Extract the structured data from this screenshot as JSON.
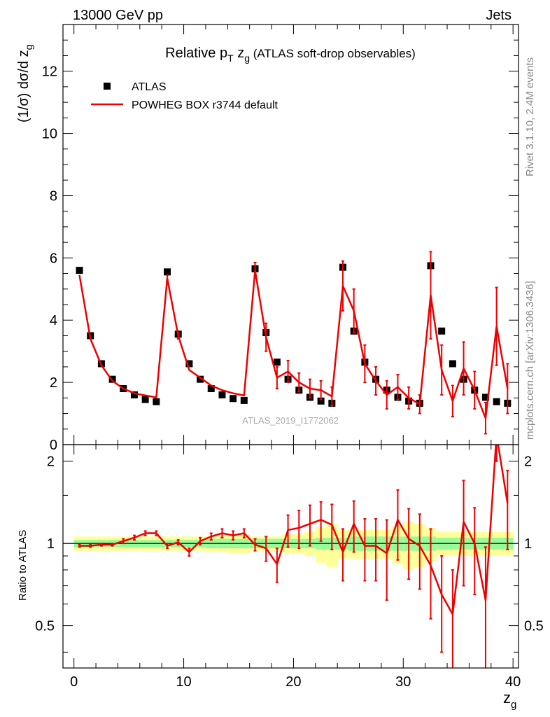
{
  "header": {
    "energy_label": "13000 GeV pp",
    "category_label": "Jets",
    "analysis_id": "ATLAS_2019_I1772062",
    "rivet_label": "Rivet 3.1.10,  2.4M events",
    "site_label": "mcplots.cern.ch [arXiv:1306.3436]"
  },
  "chart_data": {
    "type": "scatter",
    "title_parts": {
      "a": "Relative p",
      "sub_a": "T",
      "b": " z",
      "sub_b": "g",
      "c": " (ATLAS soft-drop observables)"
    },
    "xlabel": "z",
    "xlabel_sub": "g",
    "ylabel": "(1/σ) dσ/d z",
    "ylabel_sub": "g",
    "ratio_ylabel": "Ratio to ATLAS",
    "xlim": [
      -1,
      40.5
    ],
    "ylim": [
      0,
      13.5
    ],
    "ratio_ylim": [
      0.35,
      2.3
    ],
    "x_ticks": [
      0,
      10,
      20,
      30,
      40
    ],
    "x_tick_labels": [
      "0",
      "10",
      "20",
      "30",
      "40"
    ],
    "y_ticks": [
      0,
      2,
      4,
      6,
      8,
      10,
      12
    ],
    "y_tick_labels": [
      "0",
      "2",
      "4",
      "6",
      "8",
      "10",
      "12"
    ],
    "ratio_ticks": [
      0.5,
      1,
      2
    ],
    "ratio_tick_labels": [
      "0.5",
      "1",
      "2"
    ],
    "x": [
      0.5,
      1.5,
      2.5,
      3.5,
      4.5,
      5.5,
      6.5,
      7.5,
      8.5,
      9.5,
      10.5,
      11.5,
      12.5,
      13.5,
      14.5,
      15.5,
      16.5,
      17.5,
      18.5,
      19.5,
      20.5,
      21.5,
      22.5,
      23.5,
      24.5,
      25.5,
      26.5,
      27.5,
      28.5,
      29.5,
      30.5,
      31.5,
      32.5,
      33.5,
      34.5,
      35.5,
      36.5,
      37.5,
      38.5,
      39.5
    ],
    "series": [
      {
        "name": "ATLAS",
        "values": [
          5.6,
          3.5,
          2.6,
          2.1,
          1.8,
          1.6,
          1.45,
          1.38,
          5.55,
          3.55,
          2.6,
          2.1,
          1.8,
          1.6,
          1.48,
          1.42,
          5.65,
          3.6,
          2.65,
          2.1,
          1.75,
          1.52,
          1.4,
          1.33,
          5.7,
          3.65,
          2.65,
          2.1,
          1.75,
          1.52,
          1.4,
          1.33,
          5.75,
          3.65,
          2.6,
          2.1,
          1.75,
          1.52,
          1.38,
          1.33
        ]
      },
      {
        "name": "POWHEG BOX r3744 default",
        "values": [
          5.45,
          3.4,
          2.55,
          2.05,
          1.8,
          1.65,
          1.58,
          1.52,
          5.35,
          3.5,
          2.4,
          2.15,
          1.9,
          1.75,
          1.65,
          1.58,
          5.6,
          3.45,
          2.15,
          2.35,
          2.0,
          1.8,
          1.75,
          1.55,
          5.1,
          4.3,
          2.6,
          2.05,
          1.6,
          1.85,
          1.5,
          1.3,
          4.8,
          2.4,
          1.4,
          2.45,
          1.75,
          0.85,
          3.8,
          1.8
        ],
        "errors": [
          0.05,
          0.05,
          0.05,
          0.05,
          0.04,
          0.04,
          0.04,
          0.04,
          0.1,
          0.1,
          0.08,
          0.07,
          0.06,
          0.06,
          0.06,
          0.06,
          0.25,
          0.45,
          0.35,
          0.35,
          0.3,
          0.3,
          0.3,
          0.3,
          0.8,
          0.7,
          0.6,
          0.45,
          0.45,
          0.4,
          0.35,
          0.3,
          1.4,
          0.8,
          0.5,
          0.85,
          0.6,
          0.5,
          1.25,
          0.8
        ]
      }
    ],
    "ratio": [
      0.98,
      0.98,
      0.99,
      0.99,
      1.02,
      1.05,
      1.09,
      1.09,
      0.98,
      1.01,
      0.93,
      1.02,
      1.06,
      1.09,
      1.07,
      1.09,
      0.99,
      0.96,
      0.84,
      1.12,
      1.14,
      1.18,
      1.22,
      1.17,
      0.93,
      1.18,
      0.98,
      0.98,
      0.92,
      1.22,
      1.04,
      0.98,
      0.83,
      0.65,
      0.55,
      1.2,
      1.0,
      0.62,
      2.5,
      1.4
    ],
    "ratio_errors": [
      0.01,
      0.01,
      0.01,
      0.01,
      0.02,
      0.02,
      0.02,
      0.02,
      0.02,
      0.02,
      0.03,
      0.03,
      0.03,
      0.04,
      0.04,
      0.04,
      0.05,
      0.1,
      0.12,
      0.15,
      0.18,
      0.2,
      0.2,
      0.22,
      0.2,
      0.25,
      0.25,
      0.25,
      0.3,
      0.35,
      0.3,
      0.3,
      0.3,
      0.25,
      0.25,
      0.5,
      0.35,
      0.35,
      0.5,
      0.45
    ],
    "data_band_inner": [
      0.03,
      0.03,
      0.03,
      0.03,
      0.03,
      0.03,
      0.03,
      0.03,
      0.03,
      0.03,
      0.03,
      0.03,
      0.04,
      0.04,
      0.04,
      0.04,
      0.04,
      0.04,
      0.04,
      0.04,
      0.04,
      0.04,
      0.05,
      0.05,
      0.05,
      0.06,
      0.06,
      0.06,
      0.06,
      0.06,
      0.06,
      0.06,
      0.06,
      0.05,
      0.05,
      0.05,
      0.05,
      0.05,
      0.05,
      0.05
    ],
    "data_band_outer": [
      0.06,
      0.06,
      0.06,
      0.06,
      0.06,
      0.06,
      0.06,
      0.06,
      0.06,
      0.06,
      0.06,
      0.06,
      0.07,
      0.07,
      0.08,
      0.08,
      0.06,
      0.06,
      0.06,
      0.08,
      0.08,
      0.1,
      0.15,
      0.18,
      0.12,
      0.12,
      0.12,
      0.12,
      0.12,
      0.16,
      0.2,
      0.18,
      0.14,
      0.1,
      0.1,
      0.1,
      0.1,
      0.1,
      0.1,
      0.1
    ],
    "band_colors": {
      "inner": "#98fb98",
      "outer": "#ffff9a"
    },
    "colors": {
      "data": "#000000",
      "mc": "#ee0000"
    }
  }
}
